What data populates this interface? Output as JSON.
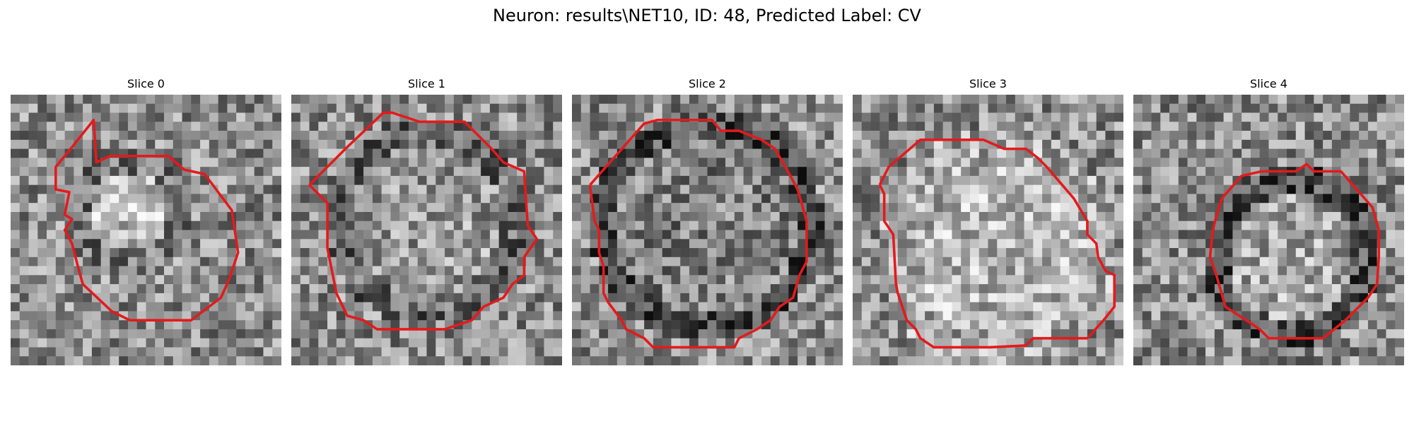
{
  "figure": {
    "title": "Neuron: results\\NET10, ID: 48, Predicted Label: CV",
    "colors": {
      "background": "#ffffff",
      "contour": "#e41a1c"
    },
    "colormap": "gray",
    "panels": [
      {
        "title": "Slice 0",
        "content": "noisy grayscale microscopy crop of a roughly round cell with a darker rim; red segmentation outline with a notch at upper left"
      },
      {
        "title": "Slice 1",
        "content": "grayscale crop of a large round cell body; red polygonal segmentation outline around it"
      },
      {
        "title": "Slice 2",
        "content": "grayscale crop of a round cell with a distinctly dark rim; red polygonal segmentation outline"
      },
      {
        "title": "Slice 3",
        "content": "brighter grayscale crop of a rounded cell; red segmentation outline elongated toward lower right"
      },
      {
        "title": "Slice 4",
        "content": "grayscale crop of a smaller round cell with dark boundary; red circular segmentation outline"
      }
    ]
  }
}
